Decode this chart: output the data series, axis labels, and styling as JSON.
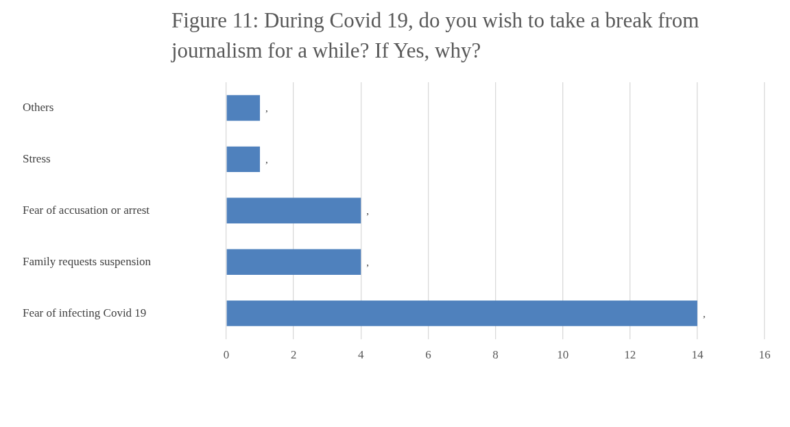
{
  "chart_data": {
    "type": "bar",
    "orientation": "horizontal",
    "title": "Figure 11: During Covid 19, do you wish to take a break from journalism for a while? If Yes, why?",
    "categories": [
      "Others",
      "Stress",
      "Fear of accusation or arrest",
      "Family requests suspension",
      "Fear of infecting Covid 19"
    ],
    "values": [
      1,
      1,
      4,
      4,
      14
    ],
    "value_labels": [
      ",",
      ",",
      ",",
      ",",
      ","
    ],
    "color": "#4f81bd",
    "xlim": [
      0,
      16
    ],
    "xticks": [
      0,
      2,
      4,
      6,
      8,
      10,
      12,
      14,
      16
    ],
    "grid": "x",
    "legend": false
  }
}
